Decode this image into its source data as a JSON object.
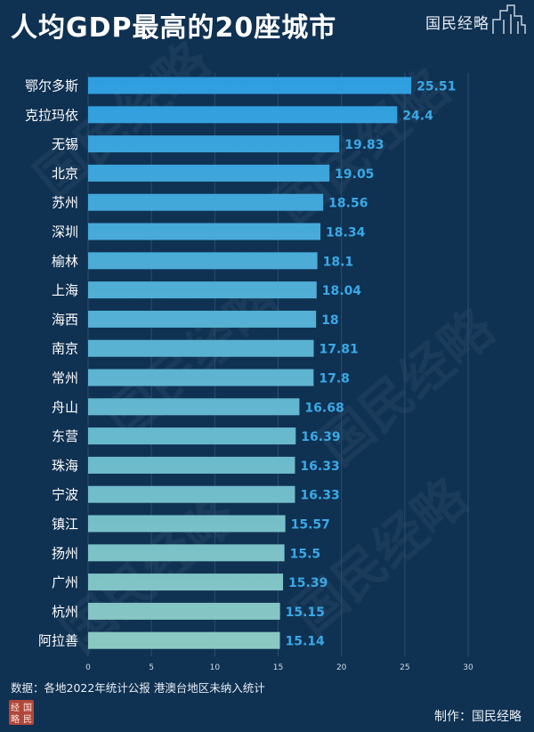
{
  "title": "人均GDP最高的20座城市",
  "brand": "国民经略",
  "watermark_text": "国民经略",
  "source_note": "数据：各地2022年统计公报  港澳台地区未纳入统计",
  "credit": "制作：国民经略",
  "seal_text": "经略国民",
  "colors": {
    "background": "#0f3152",
    "bar_top": "#2d9ee0",
    "bar_bottom": "#8cc9c2",
    "value_label": "#3aa9e6",
    "grid": "#2b4d6e"
  },
  "chart_data": {
    "type": "bar",
    "orientation": "horizontal",
    "categories": [
      "鄂尔多斯",
      "克拉玛依",
      "无锡",
      "北京",
      "苏州",
      "深圳",
      "榆林",
      "上海",
      "海西",
      "南京",
      "常州",
      "舟山",
      "东营",
      "珠海",
      "宁波",
      "镇江",
      "扬州",
      "广州",
      "杭州",
      "阿拉善"
    ],
    "values": [
      25.51,
      24.4,
      19.83,
      19.05,
      18.56,
      18.34,
      18.1,
      18.04,
      18,
      17.81,
      17.8,
      16.68,
      16.39,
      16.33,
      16.33,
      15.57,
      15.5,
      15.39,
      15.15,
      15.14
    ],
    "value_labels": [
      "25.51",
      "24.4",
      "19.83",
      "19.05",
      "18.56",
      "18.34",
      "18.1",
      "18.04",
      "18",
      "17.81",
      "17.8",
      "16.68",
      "16.39",
      "16.33",
      "16.33",
      "15.57",
      "15.5",
      "15.39",
      "15.15",
      "15.14"
    ],
    "xticks": [
      0,
      5,
      10,
      15,
      20,
      25,
      30
    ],
    "xlim": [
      0,
      30
    ],
    "grid": true,
    "legend": "none"
  }
}
